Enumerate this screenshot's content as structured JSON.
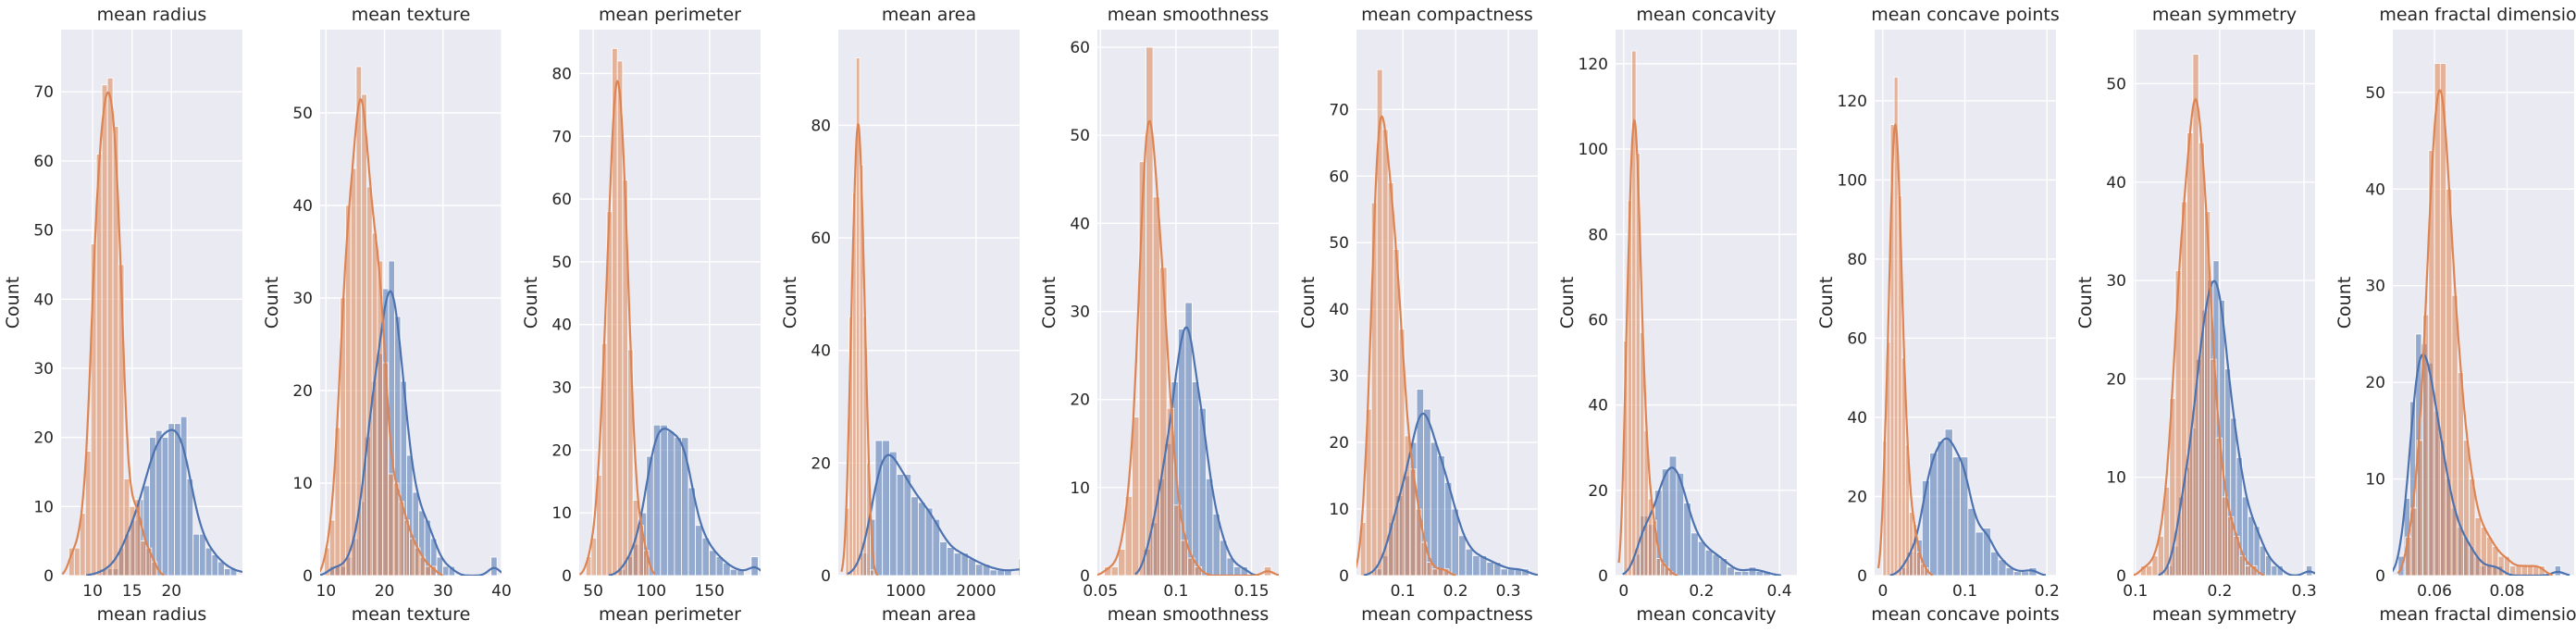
{
  "colors": {
    "malignant": "#4c72b0",
    "benign": "#dd8452",
    "plot_background": "#eaeaf2",
    "grid": "#ffffff",
    "text": "#262626"
  },
  "chart_data": [
    {
      "type": "histogram",
      "title": "mean radius",
      "xlabel": "mean radius",
      "ylabel": "Count",
      "xlim": [
        6,
        29
      ],
      "ylim": [
        0,
        79
      ],
      "xticks": [
        10,
        15,
        20
      ],
      "yticks": [
        0,
        10,
        20,
        30,
        40,
        50,
        60,
        70
      ],
      "kde": true,
      "grid": true,
      "legend": "none",
      "series": [
        {
          "color": "#4c72b0",
          "bin_start": 10.9,
          "bin_width": 0.79,
          "counts": [
            1,
            1,
            1,
            4,
            6,
            8,
            11,
            13,
            20,
            21,
            20,
            22,
            22,
            23,
            14,
            6,
            6,
            4,
            3,
            2,
            1,
            1,
            0,
            1,
            0,
            0,
            1,
            0,
            0,
            0,
            0,
            0,
            0,
            0,
            0,
            0,
            0,
            0,
            0,
            0,
            0,
            3
          ]
        },
        {
          "color": "#dd8452",
          "bin_start": 6.98,
          "bin_width": 0.7,
          "counts": [
            4,
            4,
            9,
            18,
            48,
            61,
            71,
            72,
            65,
            45,
            14,
            10,
            11,
            5,
            4,
            2
          ]
        }
      ]
    },
    {
      "type": "histogram",
      "title": "mean texture",
      "xlabel": "mean texture",
      "ylabel": "Count",
      "xlim": [
        9,
        40
      ],
      "ylim": [
        0,
        59
      ],
      "xticks": [
        10,
        20,
        30,
        40
      ],
      "yticks": [
        0,
        10,
        20,
        30,
        40,
        50
      ],
      "kde": true,
      "grid": true,
      "legend": "none",
      "series": [
        {
          "color": "#4c72b0",
          "bin_start": 10.4,
          "bin_width": 1.03,
          "counts": [
            1,
            1,
            1,
            2,
            4,
            8,
            15,
            21,
            24,
            31,
            34,
            28,
            21,
            13,
            9,
            7,
            6,
            4,
            2,
            1,
            1,
            0,
            0,
            0,
            0,
            0,
            0,
            2
          ]
        },
        {
          "color": "#dd8452",
          "bin_start": 9.7,
          "bin_width": 0.91,
          "counts": [
            3,
            6,
            16,
            30,
            40,
            44,
            55,
            52,
            42,
            37,
            34,
            23,
            11,
            10,
            8,
            6,
            4,
            3,
            2,
            1,
            1
          ]
        }
      ]
    },
    {
      "type": "histogram",
      "title": "mean perimeter",
      "xlabel": "mean perimeter",
      "ylabel": "Count",
      "xlim": [
        38,
        194
      ],
      "ylim": [
        0,
        87
      ],
      "xticks": [
        50,
        100,
        150
      ],
      "yticks": [
        0,
        10,
        20,
        30,
        40,
        50,
        60,
        70,
        80
      ],
      "kde": true,
      "grid": true,
      "legend": "none",
      "series": [
        {
          "color": "#4c72b0",
          "bin_start": 71.9,
          "bin_width": 6.0,
          "counts": [
            1,
            3,
            5,
            10,
            19,
            24,
            24,
            23,
            22,
            22,
            14,
            8,
            6,
            4,
            3,
            2,
            1,
            1,
            0,
            3
          ]
        },
        {
          "color": "#dd8452",
          "bin_start": 43.8,
          "bin_width": 4.5,
          "counts": [
            3,
            6,
            16,
            37,
            58,
            84,
            82,
            63,
            36,
            12,
            8,
            4
          ]
        }
      ]
    },
    {
      "type": "histogram",
      "title": "mean area",
      "xlabel": "mean area",
      "ylabel": "Count",
      "xlim": [
        40,
        2620
      ],
      "ylim": [
        0,
        97
      ],
      "xticks": [
        1000,
        2000
      ],
      "yticks": [
        0,
        20,
        40,
        60,
        80
      ],
      "kde": true,
      "grid": true,
      "legend": "none",
      "series": [
        {
          "color": "#4c72b0",
          "bin_start": 362,
          "bin_width": 102,
          "counts": [
            4,
            10,
            24,
            24,
            22,
            18,
            18,
            14,
            13,
            12,
            10,
            6,
            5,
            4,
            4,
            3,
            2,
            2,
            1,
            1,
            1,
            0,
            3
          ]
        },
        {
          "color": "#dd8452",
          "bin_start": 144,
          "bin_width": 50,
          "counts": [
            12,
            46,
            68,
            92,
            73,
            46,
            20,
            1
          ]
        }
      ]
    },
    {
      "type": "histogram",
      "title": "mean smoothness",
      "xlabel": "mean smoothness",
      "ylabel": "Count",
      "xlim": [
        0.048,
        0.168
      ],
      "ylim": [
        0,
        62
      ],
      "xticks": [
        0.05,
        0.1,
        0.15
      ],
      "yticks": [
        0,
        10,
        20,
        30,
        40,
        50,
        60
      ],
      "kde": true,
      "grid": true,
      "legend": "none",
      "series": [
        {
          "color": "#4c72b0",
          "bin_start": 0.0785,
          "bin_width": 0.0046,
          "counts": [
            3,
            6,
            11,
            15,
            22,
            28,
            31,
            22,
            19,
            11,
            7,
            4,
            2,
            1,
            1
          ]
        },
        {
          "color": "#dd8452",
          "bin_start": 0.0526,
          "bin_width": 0.0046,
          "counts": [
            1,
            1,
            3,
            9,
            18,
            47,
            60,
            43,
            35,
            19,
            8,
            4,
            2,
            1,
            0,
            0,
            0,
            0,
            0,
            0,
            0,
            0,
            0,
            1
          ]
        }
      ]
    },
    {
      "type": "histogram",
      "title": "mean compactness",
      "xlabel": "mean compactness",
      "ylabel": "Count",
      "xlim": [
        0.012,
        0.356
      ],
      "ylim": [
        0,
        82
      ],
      "xticks": [
        0.1,
        0.2,
        0.3
      ],
      "yticks": [
        0,
        10,
        20,
        30,
        40,
        50,
        60,
        70
      ],
      "kde": true,
      "grid": true,
      "legend": "none",
      "series": [
        {
          "color": "#4c72b0",
          "bin_start": 0.0464,
          "bin_width": 0.0133,
          "counts": [
            1,
            3,
            8,
            12,
            15,
            20,
            28,
            25,
            20,
            18,
            14,
            10,
            6,
            4,
            3,
            3,
            2,
            2,
            1,
            1,
            1,
            1
          ]
        },
        {
          "color": "#dd8452",
          "bin_start": 0.0194,
          "bin_width": 0.0105,
          "counts": [
            8,
            25,
            56,
            76,
            67,
            59,
            49,
            37,
            21,
            16,
            10,
            5,
            2,
            1,
            1,
            1
          ]
        }
      ]
    },
    {
      "type": "histogram",
      "title": "mean concavity",
      "xlabel": "mean concavity",
      "ylabel": "Count",
      "xlim": [
        -0.021,
        0.445
      ],
      "ylim": [
        0,
        128
      ],
      "xticks": [
        0.0,
        0.2,
        0.4
      ],
      "yticks": [
        0,
        20,
        40,
        60,
        80,
        100,
        120
      ],
      "kde": true,
      "grid": true,
      "legend": "none",
      "series": [
        {
          "color": "#4c72b0",
          "bin_start": 0.024,
          "bin_width": 0.0186,
          "counts": [
            5,
            14,
            12,
            20,
            25,
            28,
            24,
            17,
            10,
            8,
            6,
            5,
            4,
            2,
            1,
            1,
            2,
            1,
            1
          ]
        },
        {
          "color": "#dd8452",
          "bin_start": 0.0,
          "bin_width": 0.0105,
          "counts": [
            55,
            88,
            123,
            99,
            57,
            34,
            18,
            13,
            4,
            3,
            2,
            1
          ]
        }
      ]
    },
    {
      "type": "histogram",
      "title": "mean concave points",
      "xlabel": "mean concave points",
      "ylabel": "Count",
      "xlim": [
        -0.01,
        0.211
      ],
      "ylim": [
        0,
        138
      ],
      "xticks": [
        0.0,
        0.1,
        0.2
      ],
      "yticks": [
        0,
        20,
        40,
        60,
        80,
        100,
        120
      ],
      "kde": true,
      "grid": true,
      "legend": "none",
      "series": [
        {
          "color": "#4c72b0",
          "bin_start": 0.02,
          "bin_width": 0.0093,
          "counts": [
            2,
            6,
            9,
            24,
            31,
            34,
            37,
            30,
            30,
            17,
            11,
            12,
            6,
            4,
            2,
            1,
            1,
            2
          ]
        },
        {
          "color": "#dd8452",
          "bin_start": 0.0,
          "bin_width": 0.0046,
          "counts": [
            34,
            59,
            114,
            126,
            96,
            55,
            33,
            16,
            13,
            6,
            3,
            2
          ]
        }
      ]
    },
    {
      "type": "histogram",
      "title": "mean symmetry",
      "xlabel": "mean symmetry",
      "ylabel": "Count",
      "xlim": [
        0.098,
        0.313
      ],
      "ylim": [
        0,
        55.5
      ],
      "xticks": [
        0.1,
        0.2,
        0.3
      ],
      "yticks": [
        0,
        10,
        20,
        30,
        40,
        50
      ],
      "kde": true,
      "grid": true,
      "legend": "none",
      "series": [
        {
          "color": "#4c72b0",
          "bin_start": 0.137,
          "bin_width": 0.0069,
          "counts": [
            1,
            3,
            8,
            11,
            15,
            22,
            27,
            30,
            32,
            28,
            21,
            16,
            12,
            8,
            6,
            5,
            3,
            2,
            1,
            1,
            0,
            0,
            0,
            0,
            1
          ]
        },
        {
          "color": "#dd8452",
          "bin_start": 0.106,
          "bin_width": 0.0069,
          "counts": [
            1,
            1,
            2,
            4,
            9,
            18,
            31,
            38,
            45,
            53,
            44,
            37,
            22,
            14,
            8,
            6,
            4,
            2,
            1,
            1
          ]
        }
      ]
    },
    {
      "type": "histogram",
      "title": "mean fractal dimension",
      "xlabel": "mean fractal dimension",
      "ylabel": "Count",
      "xlim": [
        0.0485,
        0.0985
      ],
      "ylim": [
        0,
        56.5
      ],
      "xticks": [
        0.06,
        0.08
      ],
      "yticks": [
        0,
        10,
        20,
        30,
        40,
        50
      ],
      "kde": true,
      "grid": true,
      "legend": "none",
      "series": [
        {
          "color": "#4c72b0",
          "bin_start": 0.05,
          "bin_width": 0.0016,
          "counts": [
            2,
            8,
            18,
            25,
            24,
            22,
            17,
            14,
            10,
            7,
            5,
            4,
            3,
            2,
            1,
            1,
            1,
            1,
            0,
            0,
            0,
            0,
            0,
            0,
            0,
            0,
            0,
            1
          ]
        },
        {
          "color": "#dd8452",
          "bin_start": 0.052,
          "bin_width": 0.0016,
          "counts": [
            4,
            7,
            14,
            27,
            44,
            53,
            53,
            40,
            29,
            21,
            14,
            10,
            6,
            5,
            4,
            3,
            2,
            2,
            1,
            1,
            1,
            1,
            1,
            1
          ]
        }
      ]
    }
  ]
}
